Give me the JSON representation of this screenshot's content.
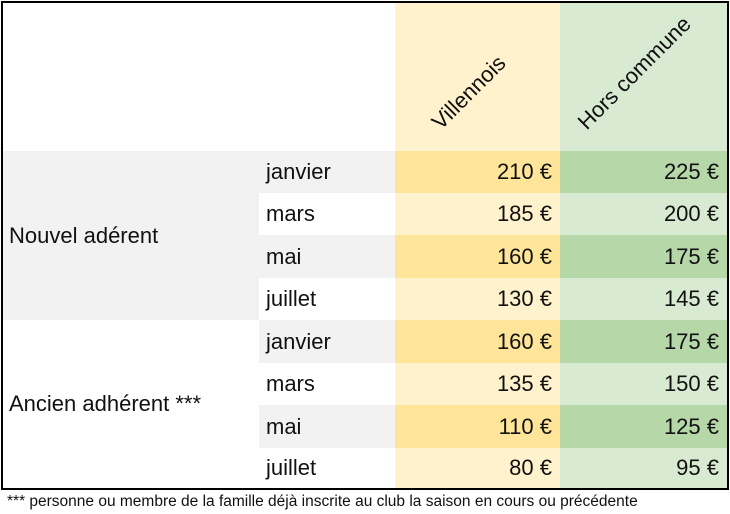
{
  "columns": [
    "Villennois",
    "Hors commune"
  ],
  "groups": [
    {
      "label": "Nouvel adérent",
      "rows": [
        {
          "month": "janvier",
          "villennois": "210 €",
          "hors_commune": "225 €"
        },
        {
          "month": "mars",
          "villennois": "185 €",
          "hors_commune": "200 €"
        },
        {
          "month": "mai",
          "villennois": "160 €",
          "hors_commune": "175 €"
        },
        {
          "month": "juillet",
          "villennois": "130 €",
          "hors_commune": "145 €"
        }
      ]
    },
    {
      "label": "Ancien adhérent ***",
      "rows": [
        {
          "month": "janvier",
          "villennois": "160 €",
          "hors_commune": "175 €"
        },
        {
          "month": "mars",
          "villennois": "135 €",
          "hors_commune": "150 €"
        },
        {
          "month": "mai",
          "villennois": "110 €",
          "hors_commune": "125 €"
        },
        {
          "month": "juillet",
          "villennois": "80 €",
          "hors_commune": "95 €"
        }
      ]
    }
  ],
  "footnote": "*** personne ou membre de la famille déjà inscrite au club la saison en cours ou précédente",
  "colors": {
    "villennois_dark": "#ffe599",
    "villennois_light": "#fff2cc",
    "hors_commune_dark": "#b6d7a8",
    "hors_commune_light": "#d9ead3",
    "row_grey": "#f2f2f2"
  }
}
